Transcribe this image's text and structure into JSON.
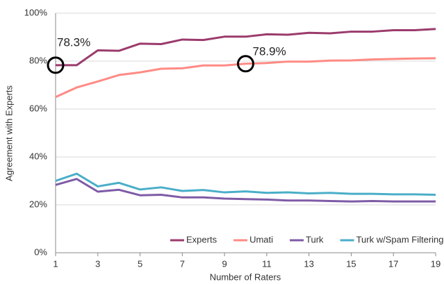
{
  "chart_data": {
    "type": "line",
    "xlabel": "Number  of Raters",
    "ylabel": "Agreement  with Experts",
    "x": [
      1,
      2,
      3,
      4,
      5,
      6,
      7,
      8,
      9,
      10,
      11,
      12,
      13,
      14,
      15,
      16,
      17,
      18,
      19
    ],
    "xlim": [
      1,
      19
    ],
    "xticks": [
      1,
      3,
      5,
      7,
      9,
      11,
      13,
      15,
      17,
      19
    ],
    "ylim": [
      0,
      100
    ],
    "yticks": [
      {
        "value": 0,
        "label": "0%"
      },
      {
        "value": 20,
        "label": "20%"
      },
      {
        "value": 40,
        "label": "40%"
      },
      {
        "value": 60,
        "label": "60%"
      },
      {
        "value": 80,
        "label": "80%"
      },
      {
        "value": 100,
        "label": "100%"
      }
    ],
    "grid": true,
    "legend": "bottom-right",
    "series": [
      {
        "name": "Experts",
        "color": "#9b3b6c",
        "values": [
          78.3,
          78.3,
          84.5,
          84.3,
          87.3,
          87.1,
          89,
          88.8,
          90.2,
          90.2,
          91.2,
          91,
          91.8,
          91.6,
          92.3,
          92.3,
          92.9,
          92.9,
          93.4
        ]
      },
      {
        "name": "Umati",
        "color": "#ff8a84",
        "values": [
          65,
          69,
          71.5,
          74.2,
          75.3,
          76.8,
          77,
          78.2,
          78.2,
          78.9,
          79.2,
          79.8,
          79.8,
          80.2,
          80.3,
          80.7,
          80.9,
          81.1,
          81.2
        ]
      },
      {
        "name": "Turk",
        "color": "#7e5ba6",
        "values": [
          28.3,
          30.8,
          25.5,
          26.3,
          24,
          24.2,
          23.1,
          23.1,
          22.6,
          22.4,
          22.2,
          21.8,
          21.8,
          21.6,
          21.4,
          21.6,
          21.4,
          21.4,
          21.4
        ]
      },
      {
        "name": "Turk w/Spam Filtering",
        "color": "#4aaec8",
        "values": [
          30,
          33,
          27.7,
          29.2,
          26.4,
          27.3,
          25.8,
          26.2,
          25.2,
          25.6,
          25,
          25.2,
          24.8,
          25,
          24.6,
          24.6,
          24.4,
          24.4,
          24.2
        ]
      }
    ],
    "annotations": [
      {
        "text": "78.3%",
        "x": 1,
        "y": 78.3
      },
      {
        "text": "78.9%",
        "x": 10,
        "y": 78.9
      }
    ]
  }
}
